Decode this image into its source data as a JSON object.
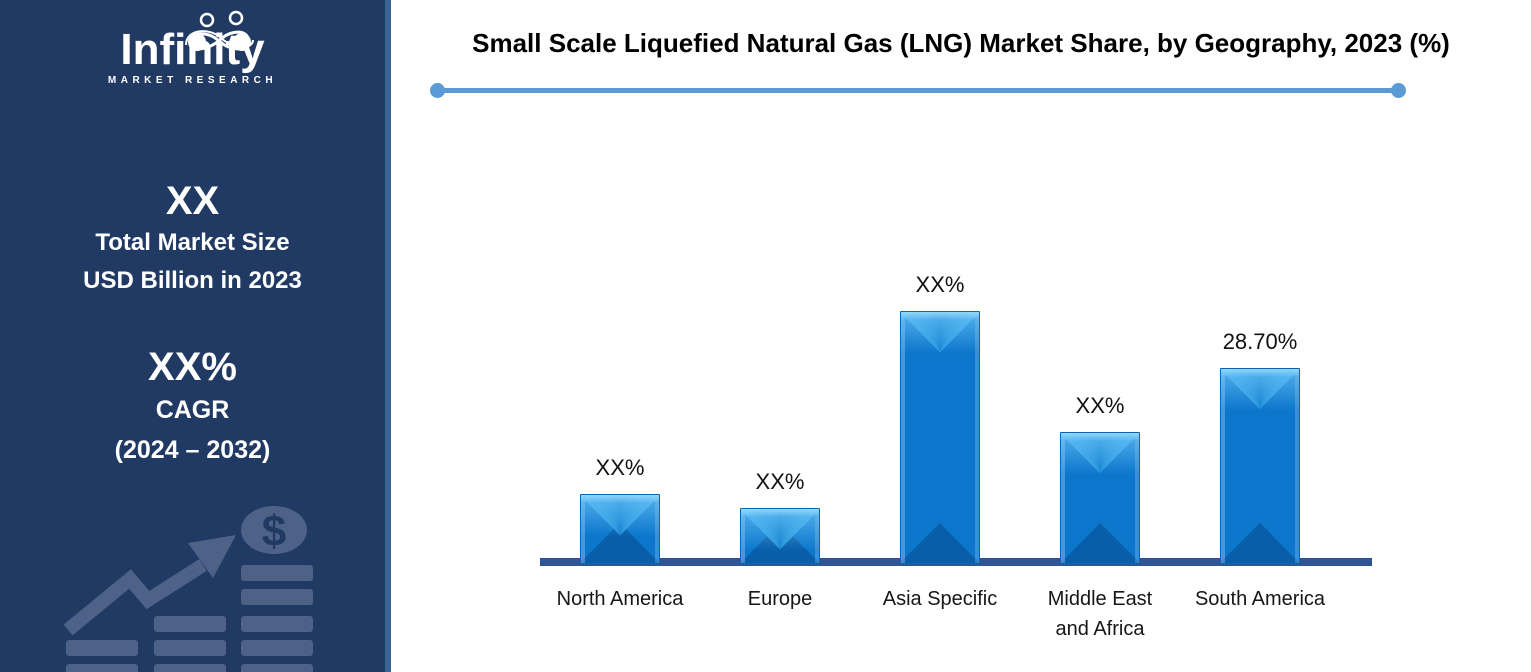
{
  "sidebar": {
    "logo": {
      "name": "Infinity",
      "tagline": "MARKET RESEARCH"
    },
    "market_size": {
      "value": "XX",
      "line1": "Total Market Size",
      "line2": "USD Billion in 2023"
    },
    "cagr": {
      "value": "XX%",
      "line1": "CAGR",
      "line2": "(2024 – 2032)"
    },
    "graphic": {
      "dollar_sign": "$",
      "icons": [
        "growth-arrow-icon",
        "dollar-coin-icon",
        "bar-stacks"
      ]
    },
    "colors": {
      "background": "#213A64",
      "edge": "#376492",
      "graphic": "#4E6186"
    }
  },
  "chart_data": {
    "type": "bar",
    "title": "Small Scale Liquefied Natural Gas (LNG) Market Share, by Geography, 2023 (%)",
    "categories": [
      "North America",
      "Europe",
      "Asia Specific",
      "Middle East\nand Africa",
      "South America"
    ],
    "series": [
      {
        "name": "Market Share, 2023 (%)",
        "value_labels": [
          "XX%",
          "XX%",
          "XX%",
          "XX%",
          "28.70%"
        ],
        "values_pct_est": [
          10.2,
          8.2,
          37.0,
          19.3,
          28.7
        ]
      }
    ],
    "xlabel": "",
    "ylabel": "",
    "ylim": [
      0,
      40
    ],
    "grid": false,
    "legend": "none",
    "bar_color": "#0B76CC",
    "axis_color": "#2F5597",
    "accent_color": "#5B9BD5"
  }
}
